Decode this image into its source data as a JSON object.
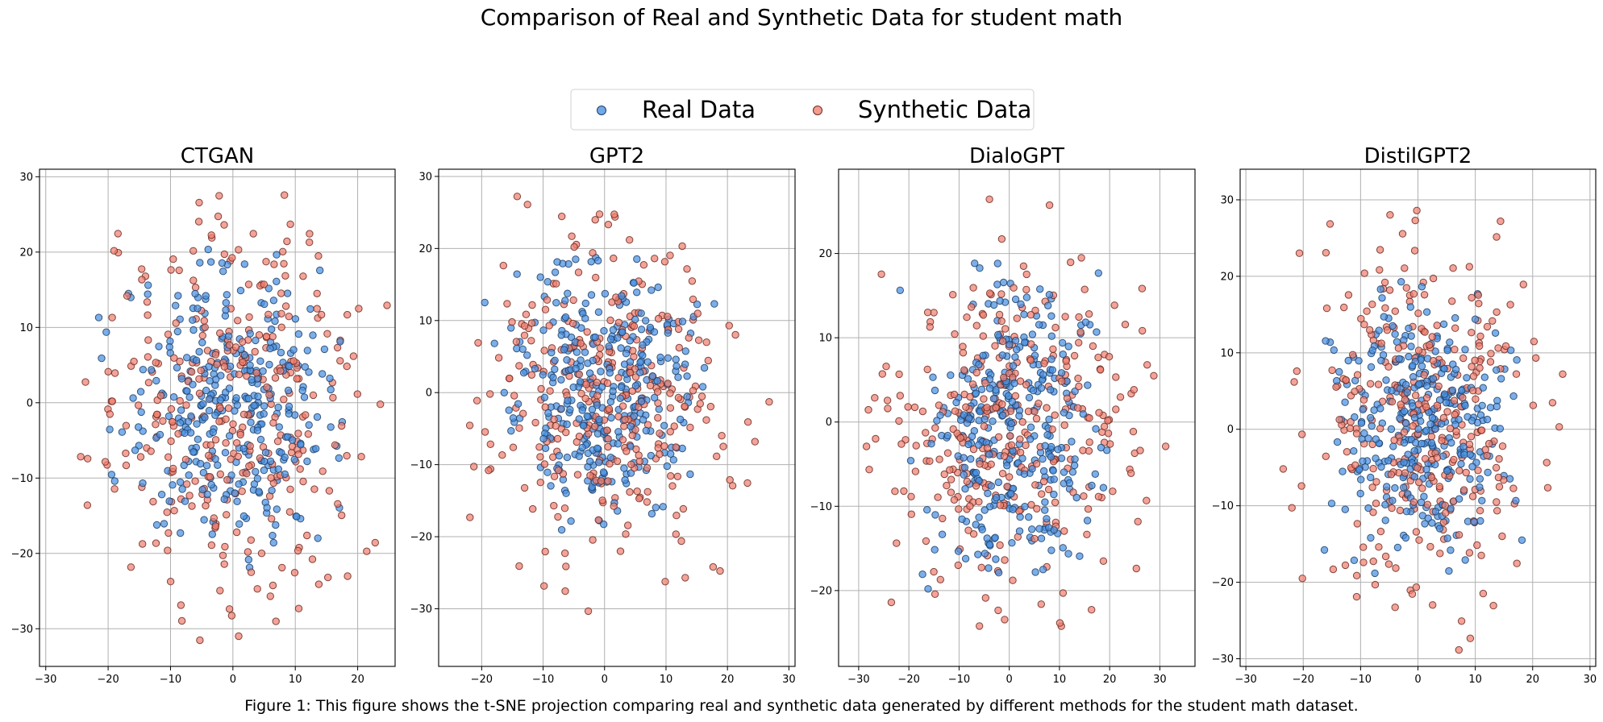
{
  "figure": {
    "title": "Comparison of Real and Synthetic Data for student math",
    "caption": "Figure 1: This figure shows the t-SNE projection comparing real and synthetic data generated by different methods for the student math dataset.",
    "legend": {
      "placement": "top-center",
      "items": [
        {
          "label": "Real Data",
          "color": "#4a90e2",
          "edge": "#1f3f66"
        },
        {
          "label": "Synthetic Data",
          "color": "#f08070",
          "edge": "#6b2a22"
        }
      ]
    }
  },
  "chart_data": [
    {
      "type": "scatter",
      "title": "CTGAN",
      "xlabel": "",
      "ylabel": "",
      "xlim": [
        -31,
        26
      ],
      "ylim": [
        -35,
        31
      ],
      "xticks": [
        -30,
        -20,
        -10,
        0,
        10,
        20
      ],
      "yticks": [
        -30,
        -20,
        -10,
        0,
        10,
        20,
        30
      ],
      "grid": true,
      "real_cloud": {
        "n": 330,
        "center": [
          0,
          0
        ],
        "spread": [
          8.5,
          9.5
        ],
        "xrange": [
          -22,
          18
        ],
        "yrange": [
          -22,
          21
        ]
      },
      "synthetic_cloud": {
        "n": 330,
        "center": [
          0,
          -1
        ],
        "spread": [
          11,
          13
        ],
        "xrange": [
          -29,
          25
        ],
        "yrange": [
          -32,
          28
        ]
      }
    },
    {
      "type": "scatter",
      "title": "GPT2",
      "xlabel": "",
      "ylabel": "",
      "xlim": [
        -27,
        31
      ],
      "ylim": [
        -38,
        31
      ],
      "xticks": [
        -20,
        -10,
        0,
        10,
        20,
        30
      ],
      "yticks": [
        -30,
        -20,
        -10,
        0,
        10,
        20,
        30
      ],
      "grid": true,
      "real_cloud": {
        "n": 330,
        "center": [
          0,
          0
        ],
        "spread": [
          8,
          8.5
        ],
        "xrange": [
          -20,
          19
        ],
        "yrange": [
          -20,
          21
        ]
      },
      "synthetic_cloud": {
        "n": 330,
        "center": [
          0,
          -1
        ],
        "spread": [
          10.5,
          11
        ],
        "xrange": [
          -25,
          30
        ],
        "yrange": [
          -35,
          28
        ]
      }
    },
    {
      "type": "scatter",
      "title": "DialoGPT",
      "xlabel": "",
      "ylabel": "",
      "xlim": [
        -34,
        37
      ],
      "ylim": [
        -29,
        30
      ],
      "xticks": [
        -30,
        -20,
        -10,
        0,
        10,
        20,
        30
      ],
      "yticks": [
        -20,
        -10,
        0,
        10,
        20
      ],
      "grid": true,
      "real_cloud": {
        "n": 330,
        "center": [
          0,
          0
        ],
        "spread": [
          8.5,
          8.5
        ],
        "xrange": [
          -22,
          20
        ],
        "yrange": [
          -21,
          21
        ]
      },
      "synthetic_cloud": {
        "n": 330,
        "center": [
          1,
          0
        ],
        "spread": [
          13,
          10
        ],
        "xrange": [
          -32,
          34
        ],
        "yrange": [
          -26,
          27
        ]
      }
    },
    {
      "type": "scatter",
      "title": "DistilGPT2",
      "xlabel": "",
      "ylabel": "",
      "xlim": [
        -31,
        31
      ],
      "ylim": [
        -31,
        34
      ],
      "xticks": [
        -30,
        -20,
        -10,
        0,
        10,
        20,
        30
      ],
      "yticks": [
        -30,
        -20,
        -10,
        0,
        10,
        20,
        30
      ],
      "grid": true,
      "real_cloud": {
        "n": 330,
        "center": [
          1,
          1
        ],
        "spread": [
          7.5,
          8.5
        ],
        "xrange": [
          -21,
          19
        ],
        "yrange": [
          -20,
          21
        ]
      },
      "synthetic_cloud": {
        "n": 330,
        "center": [
          1,
          1
        ],
        "spread": [
          10,
          12
        ],
        "xrange": [
          -29,
          29
        ],
        "yrange": [
          -29,
          32
        ]
      }
    }
  ]
}
